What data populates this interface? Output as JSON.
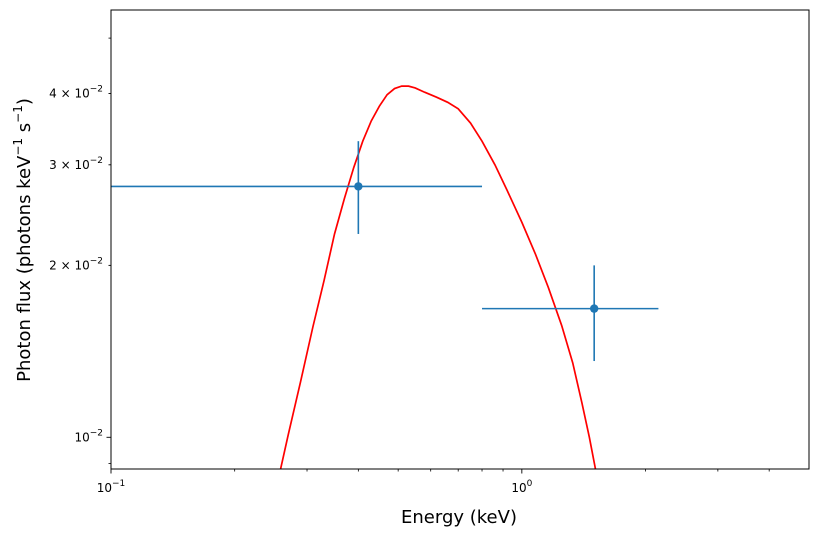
{
  "chart_data": {
    "type": "scatter",
    "xlabel": "Energy (keV)",
    "ylabel_main": "Photon flux (photons keV",
    "ylabel_sup1": "−1",
    "ylabel_mid": " s",
    "ylabel_sup2": "−1",
    "ylabel_close": ")",
    "xscale": "log",
    "yscale": "log",
    "xlim": [
      0.1,
      5.0
    ],
    "ylim": [
      0.0088,
      0.056
    ],
    "grid": false,
    "x_ticks": [
      {
        "value": 0.1,
        "base": "10",
        "exp": "−1"
      },
      {
        "value": 1.0,
        "base": "10",
        "exp": "0"
      }
    ],
    "y_ticks": [
      {
        "value": 0.01,
        "mant": "",
        "base": "10",
        "exp": "−2"
      },
      {
        "value": 0.02,
        "mant": "2 × ",
        "base": "10",
        "exp": "−2"
      },
      {
        "value": 0.03,
        "mant": "3 × ",
        "base": "10",
        "exp": "−2"
      },
      {
        "value": 0.04,
        "mant": "4 × ",
        "base": "10",
        "exp": "−2"
      }
    ],
    "data_points": {
      "color": "#1f77b4",
      "points": [
        {
          "x": 0.4,
          "y": 0.0275,
          "xerr": [
            0.3,
            0.4
          ],
          "yerr": [
            0.0048,
            0.0055
          ]
        },
        {
          "x": 1.5,
          "y": 0.0168,
          "xerr": [
            0.7,
            0.65
          ],
          "yerr": [
            0.0032,
            0.0032
          ]
        }
      ]
    },
    "model": {
      "color": "#ff0000",
      "points": [
        [
          0.255,
          0.0084
        ],
        [
          0.27,
          0.0101
        ],
        [
          0.29,
          0.0126
        ],
        [
          0.31,
          0.0156
        ],
        [
          0.33,
          0.0188
        ],
        [
          0.35,
          0.0227
        ],
        [
          0.37,
          0.0262
        ],
        [
          0.39,
          0.0297
        ],
        [
          0.41,
          0.033
        ],
        [
          0.43,
          0.0358
        ],
        [
          0.45,
          0.038
        ],
        [
          0.47,
          0.0398
        ],
        [
          0.49,
          0.0408
        ],
        [
          0.51,
          0.0412
        ],
        [
          0.53,
          0.0412
        ],
        [
          0.55,
          0.0409
        ],
        [
          0.58,
          0.0402
        ],
        [
          0.62,
          0.0394
        ],
        [
          0.66,
          0.0386
        ],
        [
          0.7,
          0.0376
        ],
        [
          0.75,
          0.0355
        ],
        [
          0.8,
          0.033
        ],
        [
          0.86,
          0.03
        ],
        [
          0.92,
          0.0271
        ],
        [
          1.0,
          0.0238
        ],
        [
          1.08,
          0.0209
        ],
        [
          1.16,
          0.0183
        ],
        [
          1.25,
          0.0157
        ],
        [
          1.33,
          0.0135
        ],
        [
          1.4,
          0.0115
        ],
        [
          1.46,
          0.01
        ],
        [
          1.52,
          0.0086
        ]
      ]
    }
  }
}
